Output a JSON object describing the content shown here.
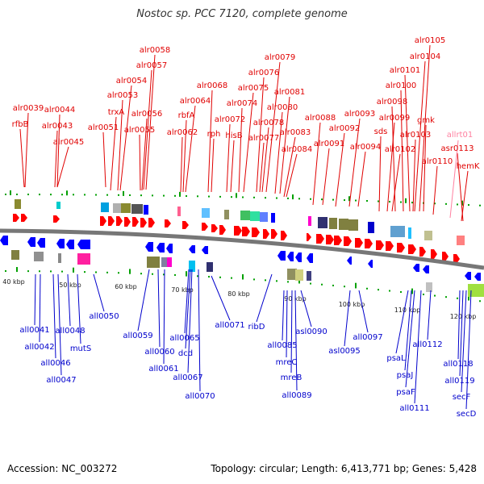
{
  "title": "Nostoc sp. PCC 7120, complete genome",
  "footer": {
    "accession": "Accession: NC_003272",
    "summary": "Topology: circular; Length: 6,413,771 bp; Genes: 5,428"
  },
  "colors": {
    "top_label": "#e00000",
    "bottom_label": "#0000cc",
    "rna_label": "#ff80a0",
    "backbone": "#777777",
    "tick": "#00a000"
  },
  "scale_labels": [
    "40 kbp",
    "50 kbp",
    "60 kbp",
    "70 kbp",
    "80 kbp",
    "90 kbp",
    "100 kbp",
    "110 kbp",
    "120 kbp"
  ],
  "top_genes": [
    "alr0039",
    "rfbB",
    "alr0044",
    "alr0043",
    "alr0045",
    "alr0051",
    "alr0058",
    "alr0057",
    "alr0054",
    "alr0053",
    "trxA",
    "alr0056",
    "alr0055",
    "alr0064",
    "rbfA",
    "alr0062",
    "alr0068",
    "rph",
    "alr0072",
    "hisB",
    "alr0074",
    "alr0075",
    "alr0076",
    "alr0079",
    "alr0078",
    "alr0077",
    "alr0081",
    "alr0080",
    "alr0083",
    "alr0084",
    "alr0088",
    "alr0091",
    "alr0092",
    "alr0093",
    "alr0094",
    "alr0105",
    "alr0104",
    "alr0101",
    "alr0100",
    "alr0098",
    "sds",
    "alr0099",
    "alr0102",
    "gmk",
    "alr0103",
    "alr0110",
    "asr0113",
    "hemK",
    "alr0097"
  ],
  "rna_genes": [
    "allrt01"
  ],
  "bottom_genes": [
    "all0041",
    "all0042",
    "all0048",
    "mutS",
    "all0046",
    "all0047",
    "all0050",
    "all0059",
    "all0060",
    "all0061",
    "all0065",
    "dcd",
    "all0067",
    "all0070",
    "all0071",
    "ribD",
    "all0085",
    "mreC",
    "mreB",
    "asl0090",
    "all0089",
    "asl0095",
    "all0097",
    "psaL",
    "psaJ",
    "psaF",
    "all0111",
    "all0112",
    "all0118",
    "all0119",
    "secF",
    "secD"
  ]
}
